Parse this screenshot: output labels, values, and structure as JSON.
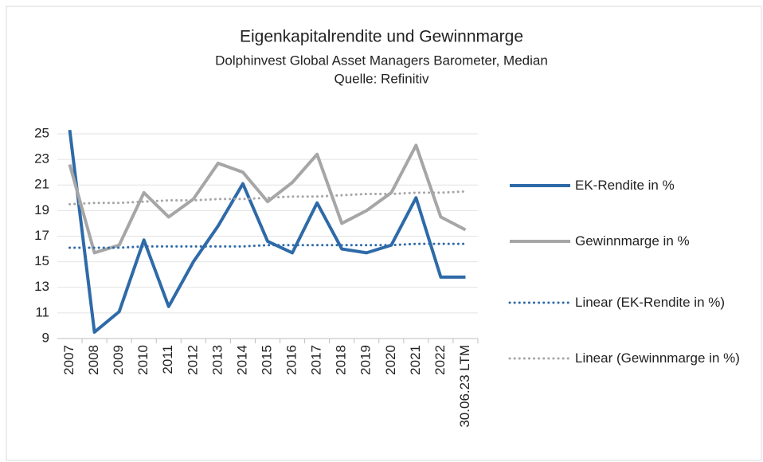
{
  "chart_data": {
    "type": "line",
    "title": "Eigenkapitalrendite und Gewinnmarge",
    "subtitle": [
      "Dolphinvest Global Asset Managers Barometer, Median",
      "Quelle: Refinitiv"
    ],
    "categories": [
      "2007",
      "2008",
      "2009",
      "2010",
      "2011",
      "2012",
      "2013",
      "2014",
      "2015",
      "2016",
      "2017",
      "2018",
      "2019",
      "2020",
      "2021",
      "2022",
      "30.06.23 LTM"
    ],
    "series": [
      {
        "name": "EK-Rendite in %",
        "color": "#2e6aa8",
        "dash": false,
        "values": [
          25.3,
          9.5,
          11.1,
          16.7,
          11.5,
          15.0,
          17.8,
          21.1,
          16.6,
          15.7,
          19.6,
          16.0,
          15.7,
          16.3,
          20.0,
          13.8,
          13.8
        ]
      },
      {
        "name": "Gewinnmarge in %",
        "color": "#a6a6a6",
        "dash": false,
        "values": [
          22.6,
          15.7,
          16.3,
          20.4,
          18.5,
          19.9,
          22.7,
          22.0,
          19.7,
          21.2,
          23.4,
          18.0,
          19.0,
          20.4,
          24.1,
          18.5,
          17.5
        ]
      },
      {
        "name": "Linear (EK-Rendite in %)",
        "color": "#2e6aa8",
        "dash": true,
        "values": [
          16.1,
          16.1,
          16.1,
          16.2,
          16.2,
          16.2,
          16.2,
          16.2,
          16.3,
          16.3,
          16.3,
          16.3,
          16.3,
          16.3,
          16.4,
          16.4,
          16.4
        ]
      },
      {
        "name": "Linear (Gewinnmarge in %)",
        "color": "#a6a6a6",
        "dash": true,
        "values": [
          19.5,
          19.6,
          19.6,
          19.7,
          19.8,
          19.8,
          19.9,
          19.9,
          20.0,
          20.1,
          20.1,
          20.2,
          20.3,
          20.3,
          20.4,
          20.4,
          20.5
        ]
      }
    ],
    "ylim": [
      9,
      25
    ],
    "yticks": [
      9,
      11,
      13,
      15,
      17,
      19,
      21,
      23,
      25
    ],
    "grid": true,
    "legend": "right"
  }
}
